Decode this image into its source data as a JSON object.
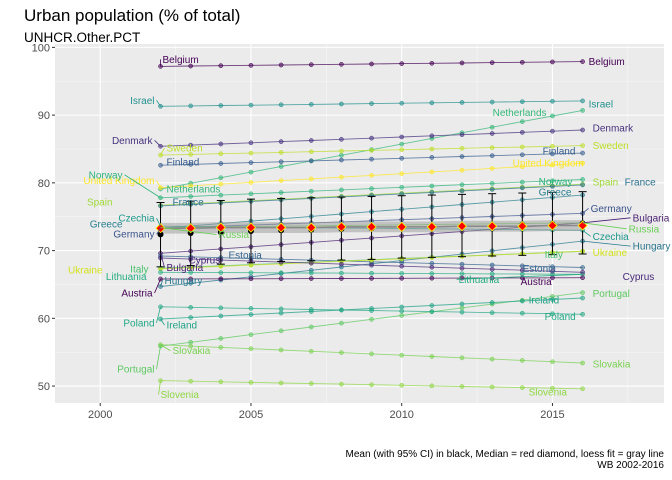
{
  "chart_data": {
    "type": "line",
    "title": "Urban population (% of total)",
    "subtitle": "UNHCR.Other.PCT",
    "caption_line1": "Mean (with 95% CI) in black, Median = red diamond, loess fit = gray line",
    "caption_line2": "WB 2002-2016",
    "xlim": [
      1998.5,
      2018.7
    ],
    "ylim": [
      47.5,
      100.5
    ],
    "x_ticks": [
      2000,
      2005,
      2010,
      2015
    ],
    "y_ticks": [
      50,
      60,
      70,
      80,
      90,
      100
    ],
    "x": [
      2002,
      2003,
      2004,
      2005,
      2006,
      2007,
      2008,
      2009,
      2010,
      2011,
      2012,
      2013,
      2014,
      2015,
      2016
    ],
    "series": [
      {
        "name": "Belgium",
        "color": "#440154",
        "start": 97.2,
        "end": 97.9
      },
      {
        "name": "Israel",
        "color": "#21908C",
        "start": 91.3,
        "end": 92.1
      },
      {
        "name": "Netherlands",
        "color": "#35B779",
        "start": 79.1,
        "end": 90.7
      },
      {
        "name": "Denmark",
        "color": "#46327E",
        "start": 85.4,
        "end": 87.8
      },
      {
        "name": "Sweden",
        "color": "#BDDF26",
        "start": 84.1,
        "end": 85.5
      },
      {
        "name": "Finland",
        "color": "#365C8D",
        "start": 82.6,
        "end": 84.4
      },
      {
        "name": "United Kingdom",
        "color": "#FDE725",
        "start": 79.3,
        "end": 82.9
      },
      {
        "name": "Norway",
        "color": "#2FB47C",
        "start": 77.8,
        "end": 80.5
      },
      {
        "name": "Spain",
        "color": "#A0DA39",
        "start": 76.7,
        "end": 79.8
      },
      {
        "name": "France",
        "color": "#2C728E",
        "start": 76.6,
        "end": 79.7
      },
      {
        "name": "Greece",
        "color": "#277F8E",
        "start": 73.3,
        "end": 78.2
      },
      {
        "name": "Germany",
        "color": "#3B528B",
        "start": 73.3,
        "end": 75.5
      },
      {
        "name": "Czechia",
        "color": "#1F988B",
        "start": 73.6,
        "end": 73.0
      },
      {
        "name": "Bulgaria",
        "color": "#481F70",
        "start": 69.6,
        "end": 74.1
      },
      {
        "name": "Russia",
        "color": "#6CCE59",
        "start": 73.4,
        "end": 74.1
      },
      {
        "name": "Hungary",
        "color": "#2A788E",
        "start": 64.7,
        "end": 71.4
      },
      {
        "name": "Estonia",
        "color": "#33638D",
        "start": 69.2,
        "end": 67.5
      },
      {
        "name": "Italy",
        "color": "#4AC16D",
        "start": 67.4,
        "end": 69.9
      },
      {
        "name": "Ukraine",
        "color": "#D2E21B",
        "start": 67.3,
        "end": 69.9
      },
      {
        "name": "Lithuania",
        "color": "#26AD81",
        "start": 66.8,
        "end": 66.5
      },
      {
        "name": "Cyprus",
        "color": "#482878",
        "start": 68.9,
        "end": 66.8
      },
      {
        "name": "Austria",
        "color": "#440154",
        "start": 65.8,
        "end": 66.0
      },
      {
        "name": "Portugal",
        "color": "#5EC962",
        "start": 55.9,
        "end": 63.8
      },
      {
        "name": "Ireland",
        "color": "#20A386",
        "start": 59.9,
        "end": 63.0
      },
      {
        "name": "Poland",
        "color": "#22A884",
        "start": 61.7,
        "end": 60.6
      },
      {
        "name": "Slovakia",
        "color": "#7AD151",
        "start": 56.1,
        "end": 53.4
      },
      {
        "name": "Slovenia",
        "color": "#8FD744",
        "start": 50.8,
        "end": 49.6
      }
    ],
    "mean": [
      72.4,
      72.6,
      72.7,
      72.9,
      73.0,
      73.1,
      73.2,
      73.3,
      73.4,
      73.5,
      73.6,
      73.7,
      73.8,
      73.9,
      74.0
    ],
    "ci_lower": [
      67.6,
      67.8,
      68.0,
      68.2,
      68.4,
      68.5,
      68.6,
      68.7,
      68.9,
      69.0,
      69.1,
      69.2,
      69.3,
      69.4,
      69.5
    ],
    "ci_upper": [
      77.1,
      77.3,
      77.4,
      77.6,
      77.7,
      77.8,
      77.9,
      78.0,
      78.1,
      78.2,
      78.3,
      78.4,
      78.5,
      78.6,
      78.7
    ],
    "median": [
      73.3,
      73.3,
      73.4,
      73.4,
      73.4,
      73.4,
      73.5,
      73.5,
      73.5,
      73.5,
      73.6,
      73.6,
      73.6,
      73.7,
      73.7
    ]
  }
}
